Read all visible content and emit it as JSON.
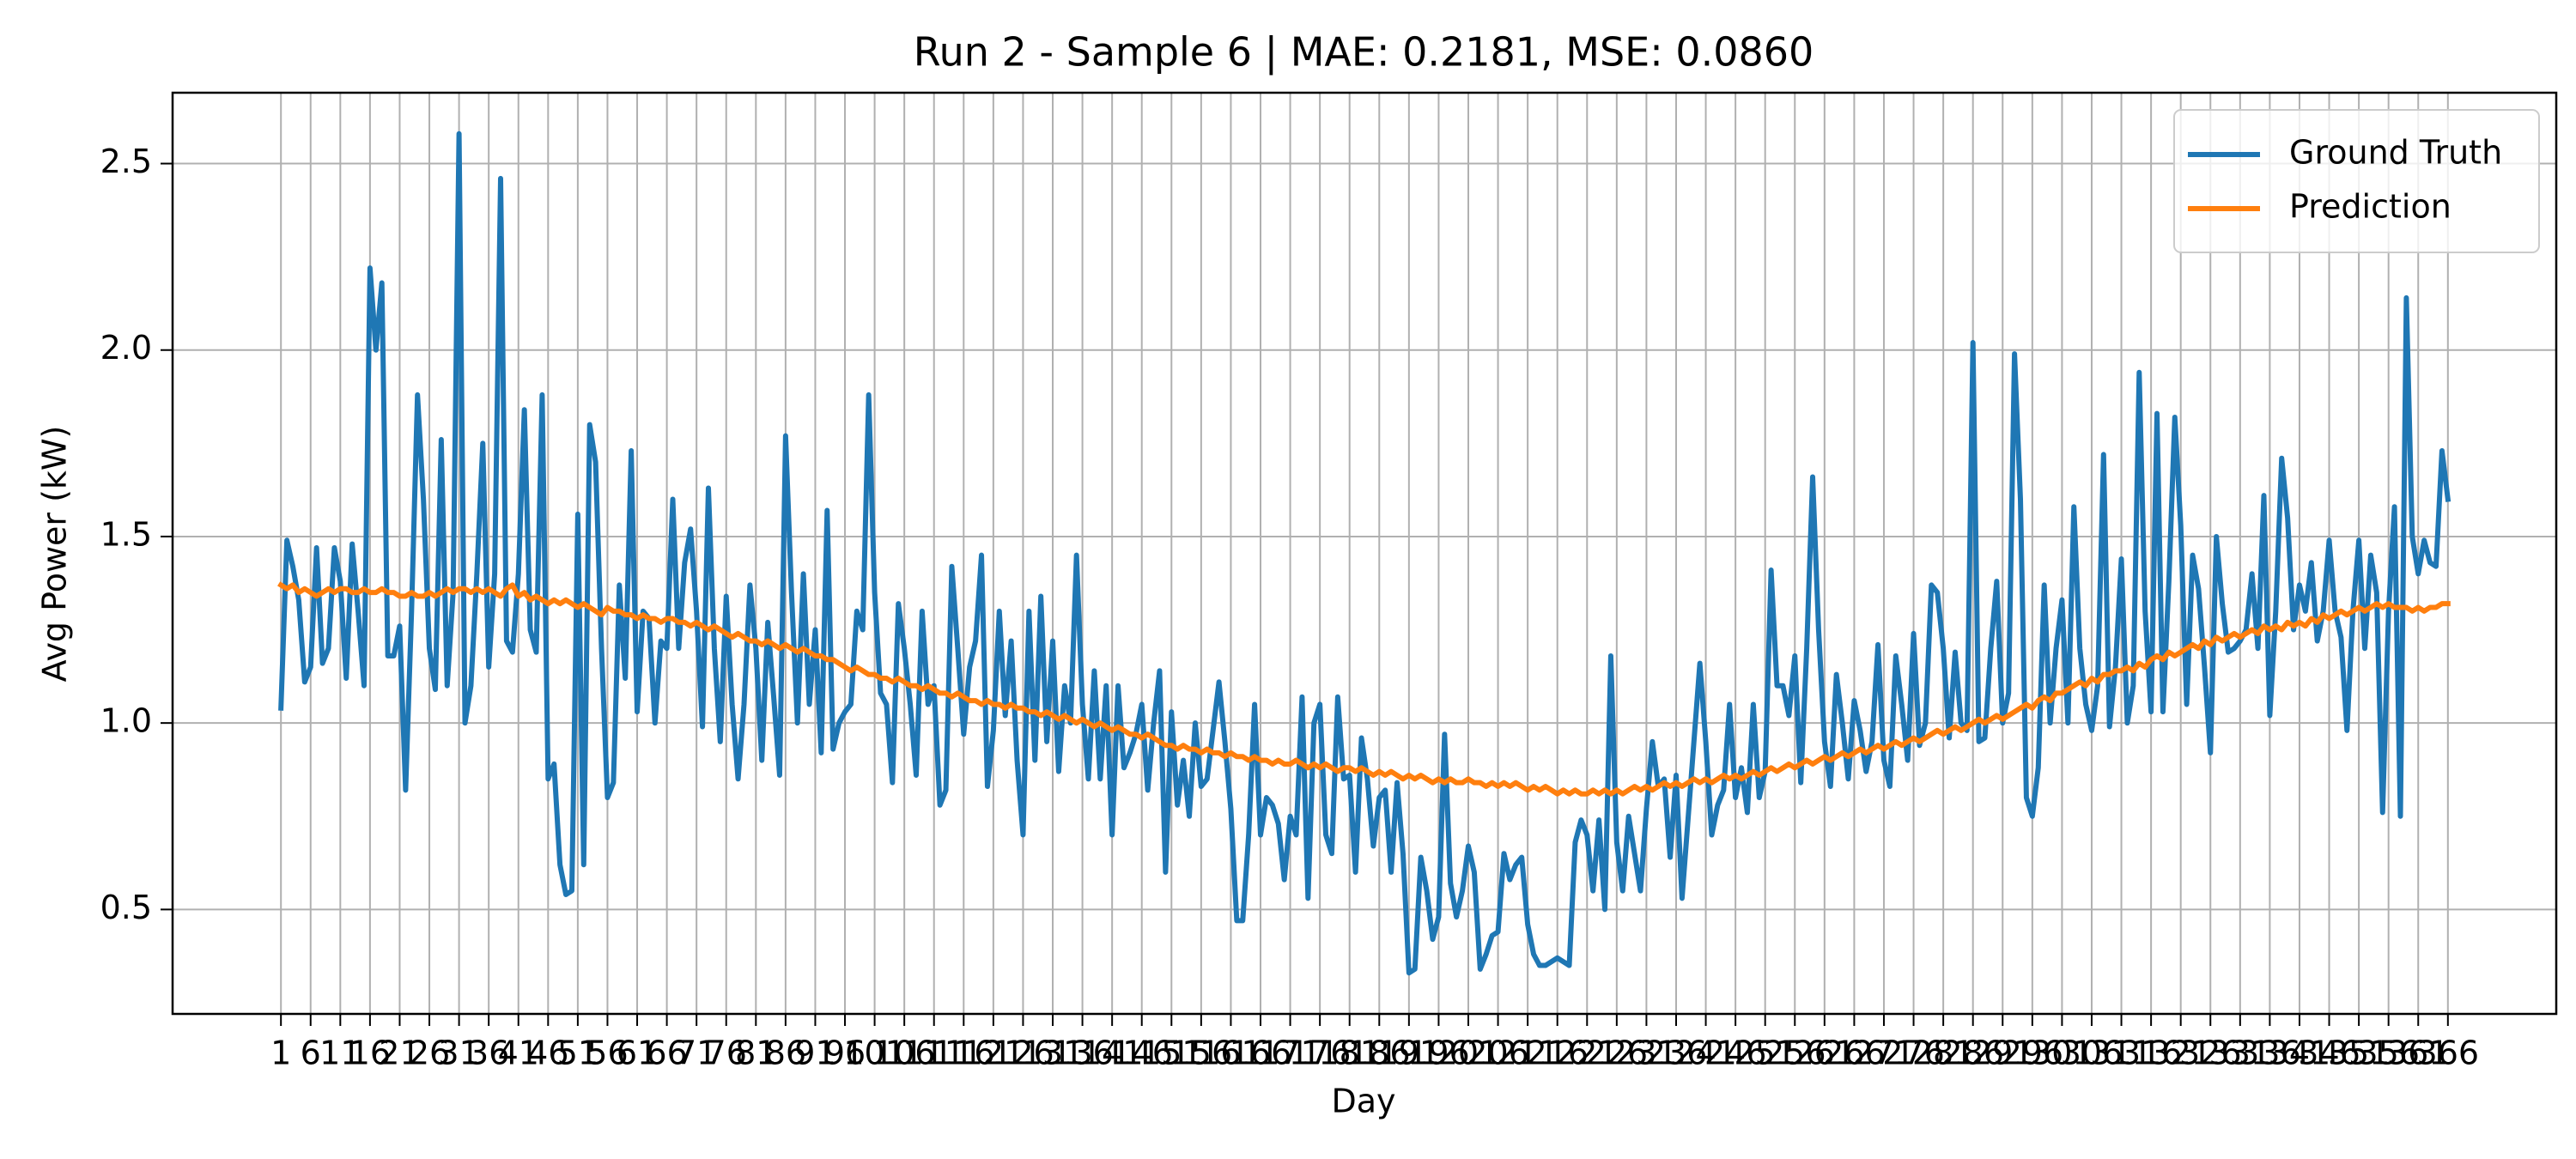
{
  "chart_data": {
    "type": "line",
    "title": "Run 2 - Sample 6 | MAE: 0.2181, MSE: 0.0860",
    "xlabel": "Day",
    "ylabel": "Avg Power (kW)",
    "x": [
      1,
      2,
      3,
      4,
      5,
      6,
      7,
      8,
      9,
      10,
      11,
      12,
      13,
      14,
      15,
      16,
      17,
      18,
      19,
      20,
      21,
      22,
      23,
      24,
      25,
      26,
      27,
      28,
      29,
      30,
      31,
      32,
      33,
      34,
      35,
      36,
      37,
      38,
      39,
      40,
      41,
      42,
      43,
      44,
      45,
      46,
      47,
      48,
      49,
      50,
      51,
      52,
      53,
      54,
      55,
      56,
      57,
      58,
      59,
      60,
      61,
      62,
      63,
      64,
      65,
      66,
      67,
      68,
      69,
      70,
      71,
      72,
      73,
      74,
      75,
      76,
      77,
      78,
      79,
      80,
      81,
      82,
      83,
      84,
      85,
      86,
      87,
      88,
      89,
      90,
      91,
      92,
      93,
      94,
      95,
      96,
      97,
      98,
      99,
      100,
      101,
      102,
      103,
      104,
      105,
      106,
      107,
      108,
      109,
      110,
      111,
      112,
      113,
      114,
      115,
      116,
      117,
      118,
      119,
      120,
      121,
      122,
      123,
      124,
      125,
      126,
      127,
      128,
      129,
      130,
      131,
      132,
      133,
      134,
      135,
      136,
      137,
      138,
      139,
      140,
      141,
      142,
      143,
      144,
      145,
      146,
      147,
      148,
      149,
      150,
      151,
      152,
      153,
      154,
      155,
      156,
      157,
      158,
      159,
      160,
      161,
      162,
      163,
      164,
      165,
      166,
      167,
      168,
      169,
      170,
      171,
      172,
      173,
      174,
      175,
      176,
      177,
      178,
      179,
      180,
      181,
      182,
      183,
      184,
      185,
      186,
      187,
      188,
      189,
      190,
      191,
      192,
      193,
      194,
      195,
      196,
      197,
      198,
      199,
      200,
      201,
      202,
      203,
      204,
      205,
      206,
      207,
      208,
      209,
      210,
      211,
      212,
      213,
      214,
      215,
      216,
      217,
      218,
      219,
      220,
      221,
      222,
      223,
      224,
      225,
      226,
      227,
      228,
      229,
      230,
      231,
      232,
      233,
      234,
      235,
      236,
      237,
      238,
      239,
      240,
      241,
      242,
      243,
      244,
      245,
      246,
      247,
      248,
      249,
      250,
      251,
      252,
      253,
      254,
      255,
      256,
      257,
      258,
      259,
      260,
      261,
      262,
      263,
      264,
      265,
      266,
      267,
      268,
      269,
      270,
      271,
      272,
      273,
      274,
      275,
      276,
      277,
      278,
      279,
      280,
      281,
      282,
      283,
      284,
      285,
      286,
      287,
      288,
      289,
      290,
      291,
      292,
      293,
      294,
      295,
      296,
      297,
      298,
      299,
      300,
      301,
      302,
      303,
      304,
      305,
      306,
      307,
      308,
      309,
      310,
      311,
      312,
      313,
      314,
      315,
      316,
      317,
      318,
      319,
      320,
      321,
      322,
      323,
      324,
      325,
      326,
      327,
      328,
      329,
      330,
      331,
      332,
      333,
      334,
      335,
      336,
      337,
      338,
      339,
      340,
      341,
      342,
      343,
      344,
      345,
      346,
      347,
      348,
      349,
      350,
      351,
      352,
      353,
      354,
      355,
      356,
      357,
      358,
      359,
      360,
      361,
      362,
      363,
      364,
      365,
      366
    ],
    "series": [
      {
        "name": "Ground Truth",
        "color": "#1f77b4",
        "values": [
          1.04,
          1.49,
          1.42,
          1.33,
          1.11,
          1.15,
          1.47,
          1.16,
          1.2,
          1.47,
          1.38,
          1.12,
          1.48,
          1.3,
          1.1,
          2.22,
          2.0,
          2.18,
          1.18,
          1.18,
          1.26,
          0.82,
          1.3,
          1.88,
          1.6,
          1.2,
          1.09,
          1.76,
          1.1,
          1.35,
          2.58,
          1.0,
          1.1,
          1.4,
          1.75,
          1.15,
          1.4,
          2.46,
          1.22,
          1.19,
          1.4,
          1.84,
          1.25,
          1.19,
          1.88,
          0.85,
          0.89,
          0.62,
          0.54,
          0.55,
          1.56,
          0.62,
          1.8,
          1.7,
          1.2,
          0.8,
          0.84,
          1.37,
          1.12,
          1.73,
          1.03,
          1.3,
          1.28,
          1.0,
          1.22,
          1.2,
          1.6,
          1.2,
          1.43,
          1.52,
          1.3,
          0.99,
          1.63,
          1.2,
          0.95,
          1.34,
          1.05,
          0.85,
          1.05,
          1.37,
          1.2,
          0.9,
          1.27,
          1.07,
          0.86,
          1.77,
          1.35,
          1.0,
          1.4,
          1.05,
          1.25,
          0.92,
          1.57,
          0.93,
          1.0,
          1.03,
          1.05,
          1.3,
          1.25,
          1.88,
          1.35,
          1.08,
          1.05,
          0.84,
          1.32,
          1.2,
          1.05,
          0.86,
          1.3,
          1.05,
          1.1,
          0.78,
          0.82,
          1.42,
          1.2,
          0.97,
          1.15,
          1.22,
          1.45,
          0.83,
          0.98,
          1.3,
          1.02,
          1.22,
          0.9,
          0.7,
          1.3,
          0.9,
          1.34,
          0.95,
          1.22,
          0.87,
          1.1,
          1.0,
          1.45,
          1.05,
          0.85,
          1.14,
          0.85,
          1.1,
          0.7,
          1.1,
          0.88,
          0.92,
          0.97,
          1.05,
          0.82,
          1.0,
          1.14,
          0.6,
          1.03,
          0.78,
          0.9,
          0.75,
          1.0,
          0.83,
          0.85,
          0.98,
          1.11,
          0.95,
          0.77,
          0.47,
          0.47,
          0.7,
          1.05,
          0.7,
          0.8,
          0.78,
          0.73,
          0.58,
          0.75,
          0.7,
          1.07,
          0.53,
          1.0,
          1.05,
          0.7,
          0.65,
          1.07,
          0.85,
          0.86,
          0.6,
          0.96,
          0.85,
          0.67,
          0.8,
          0.82,
          0.6,
          0.84,
          0.65,
          0.33,
          0.34,
          0.64,
          0.55,
          0.42,
          0.48,
          0.97,
          0.57,
          0.48,
          0.55,
          0.67,
          0.6,
          0.34,
          0.38,
          0.43,
          0.44,
          0.65,
          0.58,
          0.62,
          0.64,
          0.46,
          0.38,
          0.35,
          0.35,
          0.36,
          0.37,
          0.36,
          0.35,
          0.68,
          0.74,
          0.7,
          0.55,
          0.74,
          0.5,
          1.18,
          0.68,
          0.55,
          0.75,
          0.65,
          0.55,
          0.77,
          0.95,
          0.83,
          0.85,
          0.64,
          0.86,
          0.53,
          0.74,
          0.95,
          1.16,
          0.95,
          0.7,
          0.78,
          0.82,
          1.05,
          0.8,
          0.88,
          0.76,
          1.05,
          0.8,
          0.87,
          1.41,
          1.1,
          1.1,
          1.02,
          1.18,
          0.84,
          1.2,
          1.66,
          1.25,
          0.95,
          0.83,
          1.13,
          1.0,
          0.85,
          1.06,
          0.98,
          0.87,
          0.95,
          1.21,
          0.9,
          0.83,
          1.18,
          1.05,
          0.9,
          1.24,
          0.94,
          1.0,
          1.37,
          1.35,
          1.2,
          0.96,
          1.19,
          1.0,
          0.98,
          2.02,
          0.95,
          0.96,
          1.2,
          1.38,
          1.0,
          1.08,
          1.99,
          1.6,
          0.8,
          0.75,
          0.88,
          1.37,
          1.0,
          1.2,
          1.33,
          1.0,
          1.58,
          1.2,
          1.05,
          0.98,
          1.1,
          1.72,
          0.99,
          1.15,
          1.44,
          1.0,
          1.1,
          1.94,
          1.3,
          1.03,
          1.83,
          1.03,
          1.38,
          1.82,
          1.53,
          1.05,
          1.45,
          1.36,
          1.15,
          0.92,
          1.5,
          1.32,
          1.19,
          1.2,
          1.22,
          1.25,
          1.4,
          1.2,
          1.61,
          1.02,
          1.3,
          1.71,
          1.55,
          1.25,
          1.37,
          1.3,
          1.43,
          1.22,
          1.3,
          1.49,
          1.3,
          1.23,
          0.98,
          1.3,
          1.49,
          1.2,
          1.45,
          1.35,
          0.76,
          1.3,
          1.58,
          0.75,
          2.14,
          1.5,
          1.4,
          1.49,
          1.43,
          1.42,
          1.73,
          1.6
        ]
      },
      {
        "name": "Prediction",
        "color": "#ff7f0e",
        "values": [
          1.37,
          1.36,
          1.37,
          1.35,
          1.36,
          1.35,
          1.34,
          1.35,
          1.36,
          1.35,
          1.36,
          1.36,
          1.35,
          1.35,
          1.36,
          1.35,
          1.35,
          1.36,
          1.35,
          1.35,
          1.34,
          1.34,
          1.35,
          1.34,
          1.34,
          1.35,
          1.34,
          1.35,
          1.36,
          1.35,
          1.36,
          1.36,
          1.35,
          1.36,
          1.35,
          1.36,
          1.35,
          1.34,
          1.36,
          1.37,
          1.34,
          1.35,
          1.33,
          1.34,
          1.33,
          1.32,
          1.33,
          1.32,
          1.33,
          1.32,
          1.31,
          1.32,
          1.31,
          1.3,
          1.29,
          1.31,
          1.3,
          1.3,
          1.29,
          1.29,
          1.28,
          1.29,
          1.28,
          1.28,
          1.27,
          1.28,
          1.28,
          1.27,
          1.27,
          1.26,
          1.27,
          1.26,
          1.25,
          1.26,
          1.25,
          1.24,
          1.23,
          1.24,
          1.23,
          1.22,
          1.22,
          1.21,
          1.22,
          1.21,
          1.2,
          1.21,
          1.2,
          1.19,
          1.2,
          1.19,
          1.18,
          1.18,
          1.17,
          1.17,
          1.16,
          1.15,
          1.14,
          1.15,
          1.14,
          1.13,
          1.13,
          1.12,
          1.12,
          1.11,
          1.12,
          1.11,
          1.1,
          1.1,
          1.09,
          1.1,
          1.09,
          1.08,
          1.08,
          1.07,
          1.08,
          1.07,
          1.06,
          1.06,
          1.05,
          1.06,
          1.05,
          1.05,
          1.04,
          1.05,
          1.04,
          1.04,
          1.03,
          1.03,
          1.02,
          1.03,
          1.02,
          1.01,
          1.02,
          1.01,
          1.0,
          1.01,
          1.0,
          0.99,
          1.0,
          0.99,
          0.98,
          0.99,
          0.98,
          0.97,
          0.97,
          0.96,
          0.97,
          0.96,
          0.95,
          0.94,
          0.94,
          0.93,
          0.94,
          0.93,
          0.93,
          0.92,
          0.93,
          0.92,
          0.92,
          0.91,
          0.92,
          0.91,
          0.91,
          0.9,
          0.91,
          0.9,
          0.9,
          0.89,
          0.9,
          0.89,
          0.89,
          0.9,
          0.89,
          0.88,
          0.89,
          0.88,
          0.89,
          0.88,
          0.87,
          0.88,
          0.88,
          0.87,
          0.88,
          0.87,
          0.86,
          0.87,
          0.86,
          0.87,
          0.86,
          0.85,
          0.86,
          0.85,
          0.86,
          0.85,
          0.84,
          0.85,
          0.84,
          0.85,
          0.84,
          0.84,
          0.85,
          0.84,
          0.84,
          0.83,
          0.84,
          0.83,
          0.84,
          0.83,
          0.84,
          0.83,
          0.82,
          0.83,
          0.82,
          0.83,
          0.82,
          0.81,
          0.82,
          0.81,
          0.82,
          0.81,
          0.81,
          0.82,
          0.81,
          0.82,
          0.81,
          0.82,
          0.81,
          0.82,
          0.83,
          0.82,
          0.83,
          0.82,
          0.83,
          0.84,
          0.83,
          0.84,
          0.83,
          0.84,
          0.85,
          0.84,
          0.85,
          0.84,
          0.85,
          0.86,
          0.85,
          0.86,
          0.85,
          0.86,
          0.87,
          0.86,
          0.87,
          0.88,
          0.87,
          0.88,
          0.89,
          0.88,
          0.89,
          0.9,
          0.89,
          0.9,
          0.91,
          0.9,
          0.91,
          0.92,
          0.91,
          0.92,
          0.93,
          0.92,
          0.93,
          0.94,
          0.93,
          0.94,
          0.95,
          0.94,
          0.95,
          0.96,
          0.95,
          0.96,
          0.97,
          0.98,
          0.97,
          0.98,
          0.99,
          0.98,
          0.99,
          1.0,
          1.01,
          1.0,
          1.01,
          1.02,
          1.01,
          1.02,
          1.03,
          1.04,
          1.05,
          1.04,
          1.06,
          1.07,
          1.06,
          1.08,
          1.08,
          1.09,
          1.1,
          1.11,
          1.1,
          1.12,
          1.11,
          1.13,
          1.13,
          1.14,
          1.14,
          1.15,
          1.14,
          1.16,
          1.15,
          1.17,
          1.18,
          1.17,
          1.19,
          1.18,
          1.19,
          1.2,
          1.21,
          1.2,
          1.22,
          1.21,
          1.23,
          1.22,
          1.23,
          1.24,
          1.23,
          1.24,
          1.25,
          1.24,
          1.26,
          1.25,
          1.26,
          1.25,
          1.27,
          1.26,
          1.27,
          1.26,
          1.28,
          1.27,
          1.29,
          1.28,
          1.29,
          1.3,
          1.29,
          1.3,
          1.31,
          1.3,
          1.31,
          1.32,
          1.31,
          1.32,
          1.31,
          1.31,
          1.31,
          1.3,
          1.31,
          1.3,
          1.31,
          1.31,
          1.32,
          1.32
        ]
      }
    ],
    "xlim": [
      -17.25,
      384.25
    ],
    "xticks": [
      1,
      6,
      11,
      16,
      21,
      26,
      31,
      36,
      41,
      46,
      51,
      56,
      61,
      66,
      71,
      76,
      81,
      86,
      91,
      96,
      101,
      106,
      111,
      116,
      121,
      126,
      131,
      136,
      141,
      146,
      151,
      156,
      161,
      166,
      171,
      176,
      181,
      186,
      191,
      196,
      201,
      206,
      211,
      216,
      221,
      226,
      231,
      236,
      241,
      246,
      251,
      256,
      261,
      266,
      271,
      276,
      281,
      286,
      291,
      296,
      301,
      306,
      311,
      316,
      321,
      326,
      331,
      336,
      341,
      346,
      351,
      356,
      361,
      366
    ],
    "ylim": [
      0.22,
      2.69
    ],
    "yticks": [
      {
        "value": 0.5,
        "label": "0.5"
      },
      {
        "value": 1,
        "label": "1.0"
      },
      {
        "value": 1.5,
        "label": "1.5"
      },
      {
        "value": 2,
        "label": "2.0"
      },
      {
        "value": 2.5,
        "label": "2.5"
      }
    ],
    "grid": true,
    "legend": "upper right"
  }
}
